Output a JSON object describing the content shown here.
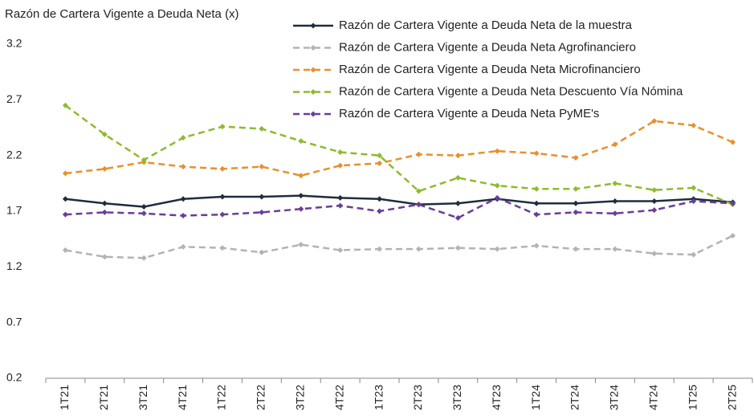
{
  "chart_data": {
    "type": "line",
    "title": "Razón de Cartera Vigente a Deuda Neta (x)",
    "categories": [
      "1T21",
      "2T21",
      "3T21",
      "4T21",
      "1T22",
      "2T22",
      "3T22",
      "4T22",
      "1T23",
      "2T23",
      "3T23",
      "4T23",
      "1T24",
      "2T24",
      "3T24",
      "4T24",
      "1T25",
      "2T25"
    ],
    "series": [
      {
        "name": "Razón de Cartera Vigente a Deuda Neta de la muestra",
        "color": "#1f2d3d",
        "dashed": false,
        "values": [
          1.81,
          1.77,
          1.74,
          1.81,
          1.83,
          1.83,
          1.84,
          1.82,
          1.81,
          1.76,
          1.77,
          1.81,
          1.77,
          1.77,
          1.79,
          1.79,
          1.81,
          1.78
        ]
      },
      {
        "name": "Razón de Cartera Vigente a Deuda Neta Agrofinanciero",
        "color": "#b3b3b3",
        "dashed": true,
        "values": [
          1.35,
          1.29,
          1.28,
          1.38,
          1.37,
          1.33,
          1.4,
          1.35,
          1.36,
          1.36,
          1.37,
          1.36,
          1.39,
          1.36,
          1.36,
          1.32,
          1.31,
          1.48
        ]
      },
      {
        "name": "Razón de Cartera Vigente a Deuda Neta Microfinanciero",
        "color": "#e8902c",
        "dashed": true,
        "values": [
          2.04,
          2.08,
          2.14,
          2.1,
          2.08,
          2.1,
          2.02,
          2.11,
          2.13,
          2.21,
          2.2,
          2.24,
          2.22,
          2.18,
          2.3,
          2.51,
          2.47,
          2.32
        ]
      },
      {
        "name": "Razón de Cartera Vigente a Deuda Neta Descuento Vía Nómina",
        "color": "#8dbb2e",
        "dashed": true,
        "values": [
          2.65,
          2.39,
          2.16,
          2.36,
          2.46,
          2.44,
          2.33,
          2.23,
          2.2,
          1.88,
          2.0,
          1.93,
          1.9,
          1.9,
          1.95,
          1.89,
          1.91,
          1.76
        ]
      },
      {
        "name": "Razón de Cartera Vigente a Deuda Neta PyME's",
        "color": "#6a3d9a",
        "dashed": true,
        "values": [
          1.67,
          1.69,
          1.68,
          1.66,
          1.67,
          1.69,
          1.72,
          1.75,
          1.7,
          1.76,
          1.64,
          1.82,
          1.67,
          1.69,
          1.68,
          1.71,
          1.79,
          1.77
        ]
      }
    ],
    "ylim": [
      0.2,
      3.2
    ],
    "yticks": [
      0.2,
      0.7,
      1.2,
      1.7,
      2.2,
      2.7,
      3.2
    ],
    "grid": false,
    "legend": "top-right"
  }
}
